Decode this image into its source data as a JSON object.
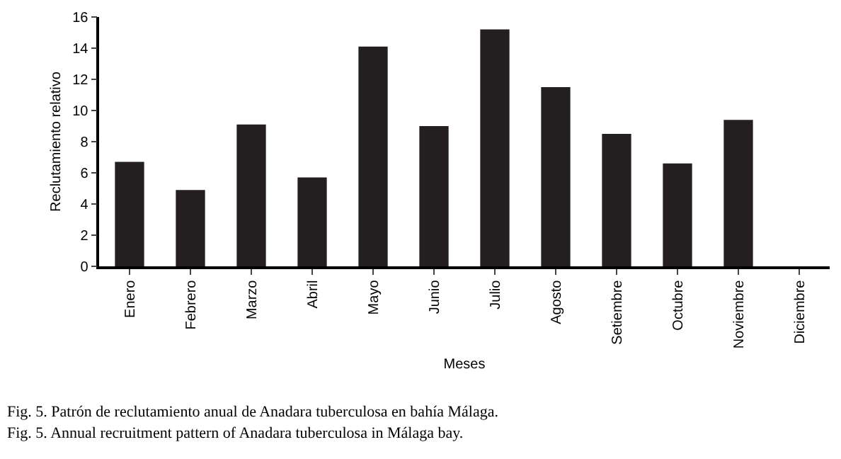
{
  "chart_data": {
    "type": "bar",
    "categories": [
      "Enero",
      "Febrero",
      "Marzo",
      "Abril",
      "Mayo",
      "Junio",
      "Julio",
      "Agosto",
      "Setiembre",
      "Octubre",
      "Noviembre",
      "Diciembre"
    ],
    "values": [
      6.7,
      4.9,
      9.1,
      5.7,
      14.1,
      9.0,
      15.2,
      11.5,
      8.5,
      6.6,
      9.4,
      0
    ],
    "color": "#231f20",
    "xlabel": "Meses",
    "ylabel": "Reclutamiento relativo",
    "ylim": [
      0,
      16
    ],
    "yticks": [
      0,
      2,
      4,
      6,
      8,
      10,
      12,
      14,
      16
    ],
    "annotations": [
      "Fig. 5. Patrón de reclutamiento anual de Anadara tuberculosa en bahía Málaga.",
      "Fig. 5. Annual recruitment pattern of Anadara tuberculosa in Málaga bay."
    ]
  }
}
